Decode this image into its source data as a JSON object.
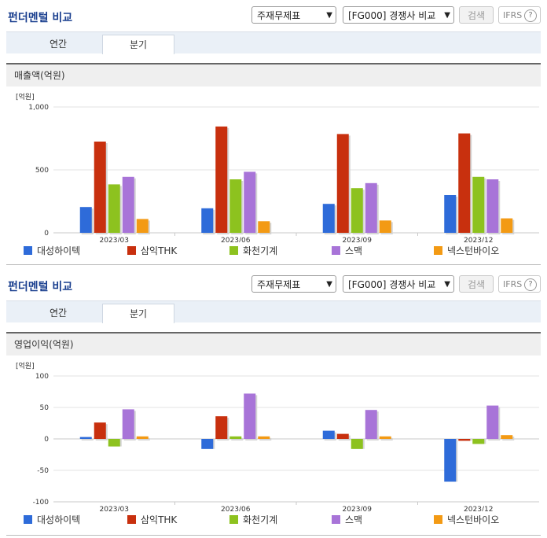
{
  "colors": {
    "c0": "#2e6bd9",
    "c1": "#c8300e",
    "c2": "#8dc21f",
    "c3": "#a874d8",
    "c4": "#f39a14"
  },
  "panels": [
    {
      "title": "펀더멘털 비교",
      "select1": "주재무제표",
      "select2": "[FG000] 경쟁사 비교",
      "search_label": "검색",
      "ifrs_label": "IFRS",
      "tabs": [
        "연간",
        "분기"
      ],
      "active_tab": 1,
      "section_title": "매출액(억원)",
      "unit_label": "[억원]"
    },
    {
      "title": "펀더멘털 비교",
      "select1": "주재무제표",
      "select2": "[FG000] 경쟁사 비교",
      "search_label": "검색",
      "ifrs_label": "IFRS",
      "tabs": [
        "연간",
        "분기"
      ],
      "active_tab": 1,
      "section_title": "영업이익(억원)",
      "unit_label": "[억원]"
    }
  ],
  "chart_data": [
    {
      "type": "bar",
      "categories": [
        "2023/03",
        "2023/06",
        "2023/09",
        "2023/12"
      ],
      "ylim": [
        0,
        1000
      ],
      "yticks": [
        0,
        500,
        1000
      ],
      "ytick_labels": [
        "0",
        "500",
        "1,000"
      ],
      "series": [
        {
          "name": "대성하이텍",
          "values": [
            205,
            195,
            230,
            300
          ]
        },
        {
          "name": "삼익THK",
          "values": [
            725,
            845,
            785,
            790
          ]
        },
        {
          "name": "화천기계",
          "values": [
            385,
            425,
            355,
            445
          ]
        },
        {
          "name": "스맥",
          "values": [
            445,
            485,
            395,
            425
          ]
        },
        {
          "name": "넥스턴바이오",
          "values": [
            110,
            92,
            98,
            115
          ]
        }
      ]
    },
    {
      "type": "bar",
      "categories": [
        "2023/03",
        "2023/06",
        "2023/09",
        "2023/12"
      ],
      "ylim": [
        -100,
        100
      ],
      "yticks": [
        -100,
        -50,
        0,
        50,
        100
      ],
      "ytick_labels": [
        "-100",
        "-50",
        "0",
        "50",
        "100"
      ],
      "series": [
        {
          "name": "대성하이텍",
          "values": [
            3,
            -16,
            13,
            -68
          ]
        },
        {
          "name": "삼익THK",
          "values": [
            26,
            36,
            8,
            -3
          ]
        },
        {
          "name": "화천기계",
          "values": [
            -12,
            4,
            -16,
            -8
          ]
        },
        {
          "name": "스맥",
          "values": [
            47,
            72,
            46,
            53
          ]
        },
        {
          "name": "넥스턴바이오",
          "values": [
            4,
            4,
            4,
            6
          ]
        }
      ]
    }
  ]
}
